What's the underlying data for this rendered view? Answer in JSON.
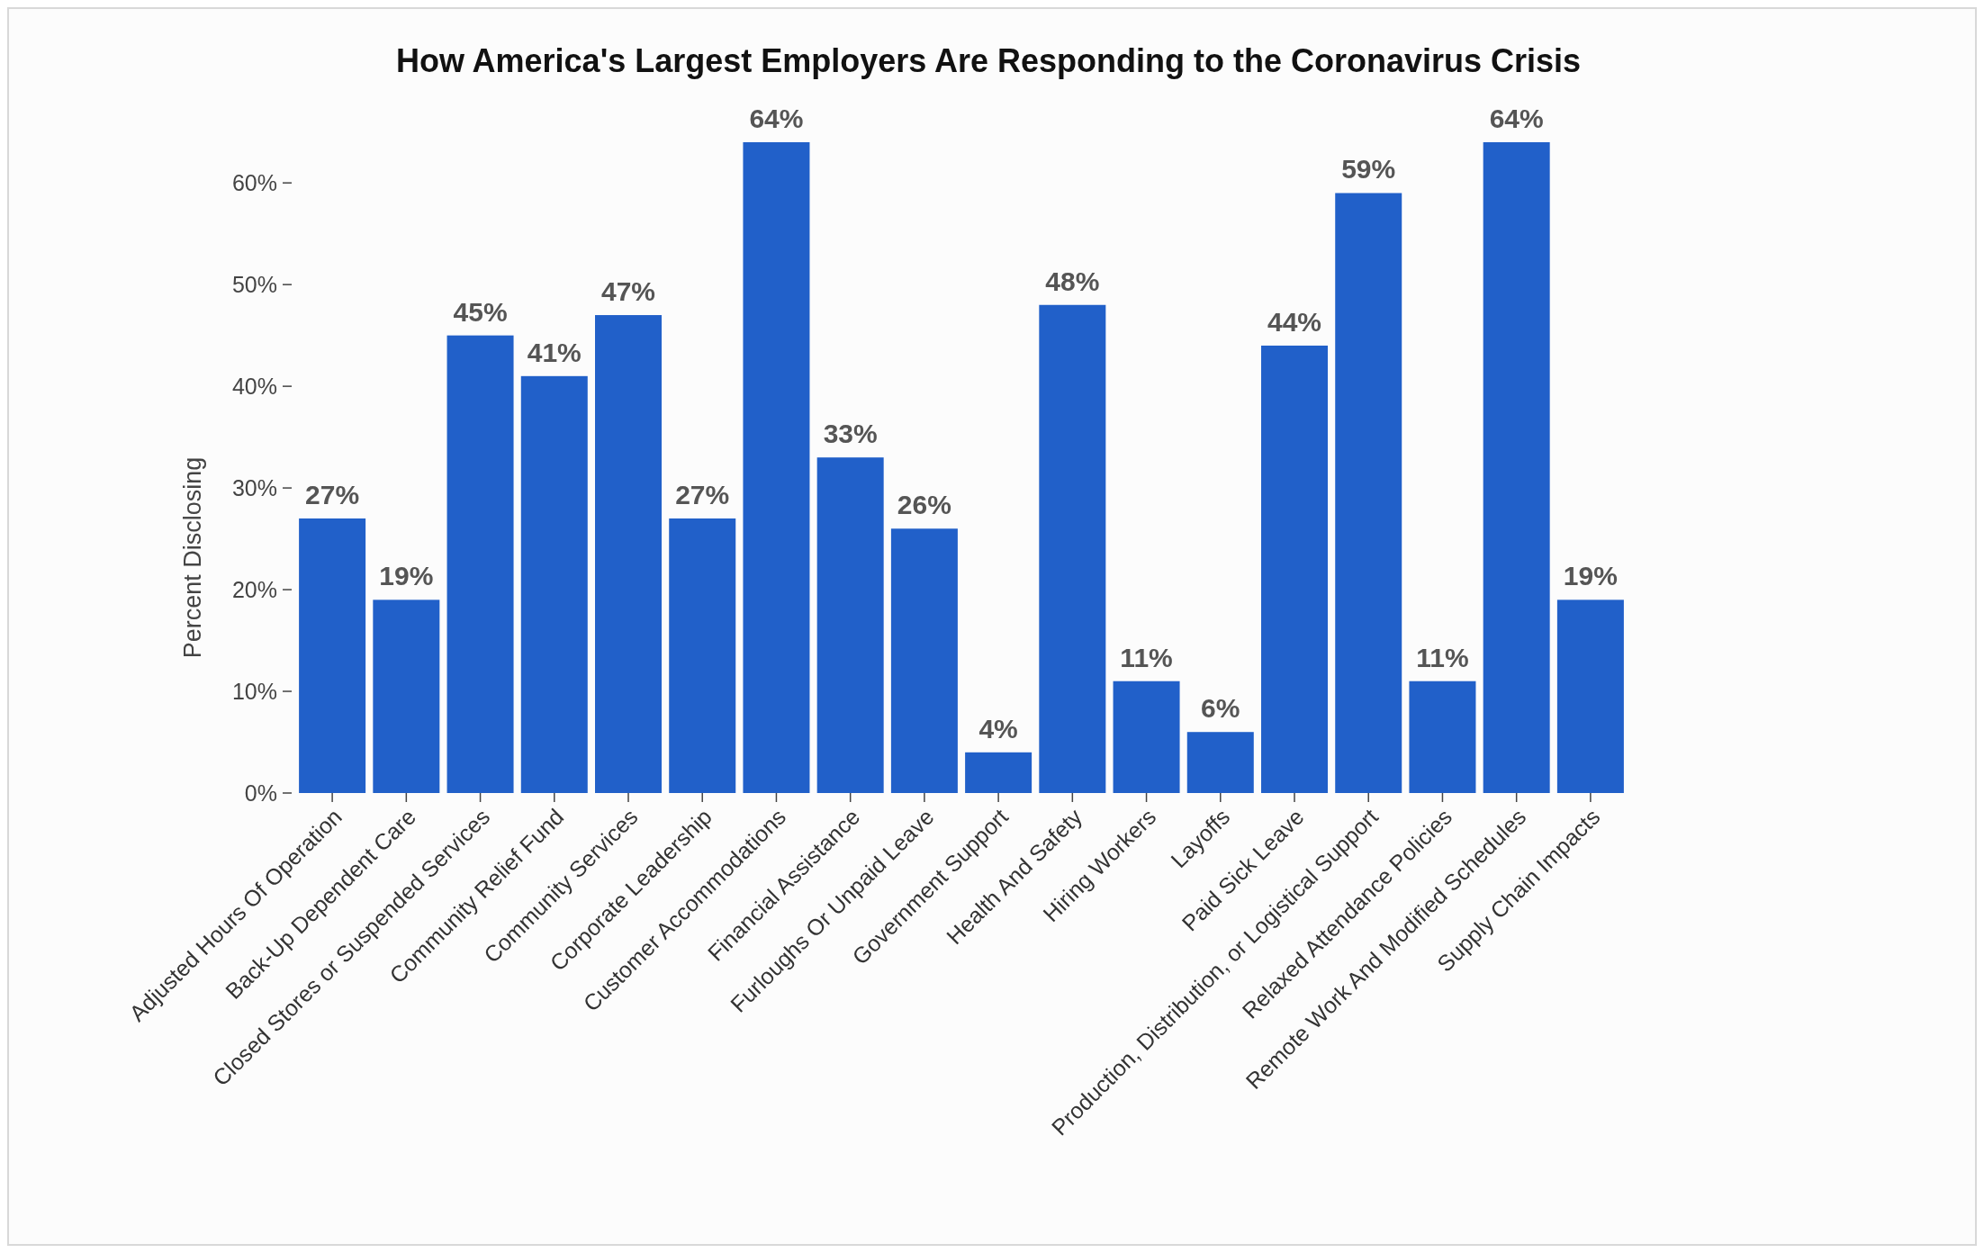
{
  "chart_data": {
    "type": "bar",
    "title": "How America's Largest Employers Are Responding to the Coronavirus Crisis",
    "ylabel": "Percent Disclosing",
    "categories": [
      "Adjusted Hours Of Operation",
      "Back-Up Dependent Care",
      "Closed Stores or Suspended Services",
      "Community Relief Fund",
      "Community Services",
      "Corporate Leadership",
      "Customer Accommodations",
      "Financial Assistance",
      "Furloughs Or Unpaid Leave",
      "Government Support",
      "Health And Safety",
      "Hiring Workers",
      "Layoffs",
      "Paid Sick Leave",
      "Production, Distribution, or Logistical Support",
      "Relaxed Attendance Policies",
      "Remote Work And Modified Schedules",
      "Supply Chain Impacts"
    ],
    "values": [
      27,
      19,
      45,
      41,
      47,
      27,
      64,
      33,
      26,
      4,
      48,
      11,
      6,
      44,
      59,
      11,
      64,
      19
    ],
    "value_labels": [
      "27%",
      "19%",
      "45%",
      "41%",
      "47%",
      "27%",
      "64%",
      "33%",
      "26%",
      "4%",
      "48%",
      "11%",
      "6%",
      "44%",
      "59%",
      "11%",
      "64%",
      "19%"
    ],
    "color": "#2160c9",
    "ylim": [
      0,
      64
    ],
    "yticks": [
      {
        "value": 0,
        "label": "0%"
      },
      {
        "value": 10,
        "label": "10%"
      },
      {
        "value": 20,
        "label": "20%"
      },
      {
        "value": 30,
        "label": "30%"
      },
      {
        "value": 40,
        "label": "40%"
      },
      {
        "value": 50,
        "label": "50%"
      },
      {
        "value": 60,
        "label": "60%"
      }
    ],
    "grid": false
  }
}
